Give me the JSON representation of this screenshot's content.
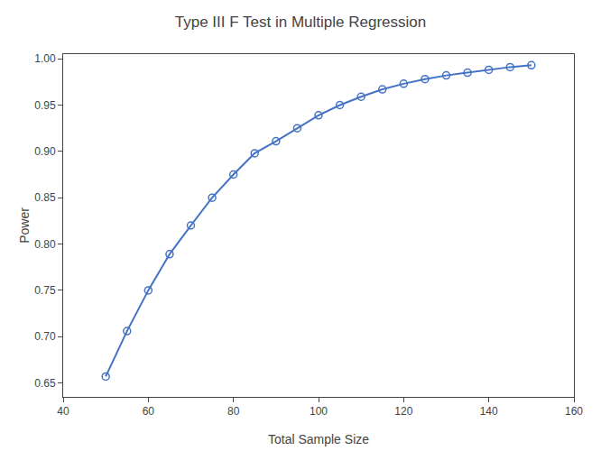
{
  "chart_data": {
    "type": "line",
    "title": "Type III F Test in Multiple Regression",
    "xlabel": "Total Sample Size",
    "ylabel": "Power",
    "x": [
      50,
      55,
      60,
      65,
      70,
      75,
      80,
      85,
      90,
      95,
      100,
      105,
      110,
      115,
      120,
      125,
      130,
      135,
      140,
      145,
      150
    ],
    "values": [
      0.657,
      0.706,
      0.75,
      0.789,
      0.82,
      0.85,
      0.875,
      0.898,
      0.911,
      0.925,
      0.939,
      0.95,
      0.959,
      0.967,
      0.973,
      0.978,
      0.982,
      0.985,
      0.988,
      0.991,
      0.993
    ],
    "color": "#4472C4",
    "marker": "circle-open",
    "xlim": [
      40,
      160
    ],
    "ylim": [
      0.635,
      1.005
    ],
    "xticks": [
      40,
      60,
      80,
      100,
      120,
      140,
      160
    ],
    "yticks": [
      0.65,
      {
        "value": 0.7,
        "label": "0.70"
      },
      0.75,
      {
        "value": 0.8,
        "label": "0.80"
      },
      0.85,
      {
        "value": 0.9,
        "label": "0.90"
      },
      0.95,
      {
        "value": 1,
        "label": "1.00"
      }
    ],
    "grid": false
  }
}
